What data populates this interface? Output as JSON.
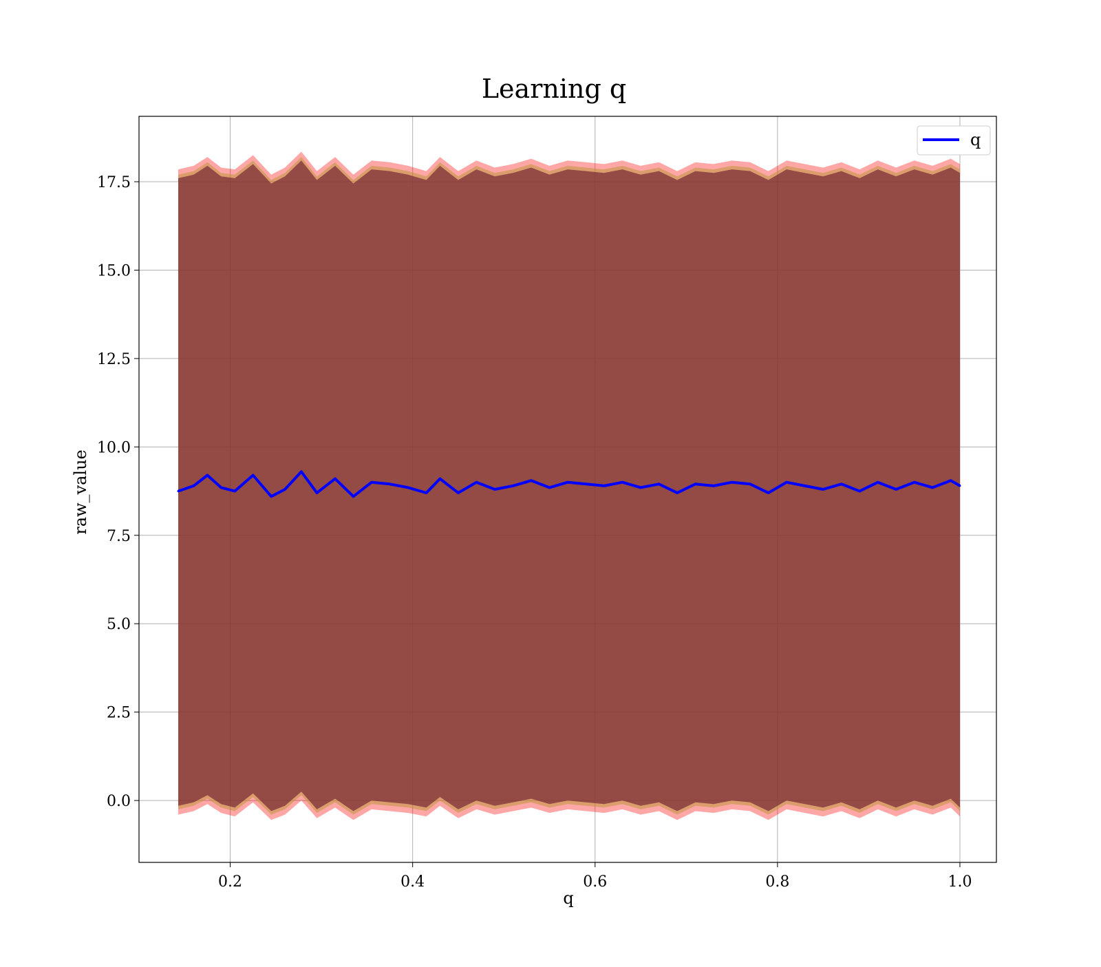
{
  "chart_data": {
    "type": "line",
    "title": "Learning q",
    "xlabel": "q",
    "ylabel": "raw_value",
    "xlim": [
      0.1,
      1.04
    ],
    "ylim": [
      -1.75,
      19.35
    ],
    "x_ticks": [
      0.2,
      0.4,
      0.6,
      0.8,
      1.0
    ],
    "x_tick_labels": [
      "0.2",
      "0.4",
      "0.6",
      "0.8",
      "1.0"
    ],
    "y_ticks": [
      0.0,
      2.5,
      5.0,
      7.5,
      10.0,
      12.5,
      15.0,
      17.5
    ],
    "y_tick_labels": [
      "0.0",
      "2.5",
      "5.0",
      "7.5",
      "10.0",
      "12.5",
      "15.0",
      "17.5"
    ],
    "grid": true,
    "legend_position": "top-right",
    "x_range": [
      0.143,
      1.0
    ],
    "series": [
      {
        "name": "q",
        "color": "#0000ff",
        "x": [
          0.143,
          0.16,
          0.175,
          0.19,
          0.205,
          0.225,
          0.245,
          0.26,
          0.278,
          0.295,
          0.315,
          0.335,
          0.355,
          0.375,
          0.395,
          0.415,
          0.43,
          0.45,
          0.47,
          0.49,
          0.51,
          0.53,
          0.55,
          0.57,
          0.59,
          0.61,
          0.63,
          0.65,
          0.67,
          0.69,
          0.71,
          0.73,
          0.75,
          0.77,
          0.79,
          0.81,
          0.83,
          0.85,
          0.87,
          0.89,
          0.91,
          0.93,
          0.95,
          0.97,
          0.99,
          1.0
        ],
        "y": [
          8.75,
          8.9,
          9.2,
          8.85,
          8.75,
          9.2,
          8.6,
          8.8,
          9.3,
          8.7,
          9.1,
          8.6,
          9.0,
          8.95,
          8.85,
          8.7,
          9.1,
          8.7,
          9.0,
          8.8,
          8.9,
          9.05,
          8.85,
          9.0,
          8.95,
          8.9,
          9.0,
          8.85,
          8.95,
          8.7,
          8.95,
          8.9,
          9.0,
          8.95,
          8.7,
          9.0,
          8.9,
          8.8,
          8.95,
          8.75,
          9.0,
          8.8,
          9.0,
          8.85,
          9.05,
          8.9
        ]
      }
    ],
    "bands": [
      {
        "lower": [
          -0.15,
          -0.05,
          0.15,
          -0.1,
          -0.2,
          0.2,
          -0.3,
          -0.15,
          0.25,
          -0.25,
          0.05,
          -0.3,
          0.0,
          -0.05,
          -0.1,
          -0.2,
          0.1,
          -0.25,
          0.0,
          -0.15,
          -0.05,
          0.05,
          -0.1,
          0.0,
          -0.05,
          -0.1,
          0.0,
          -0.15,
          -0.05,
          -0.3,
          -0.05,
          -0.1,
          0.0,
          -0.05,
          -0.3,
          0.0,
          -0.1,
          -0.2,
          -0.05,
          -0.25,
          0.0,
          -0.2,
          0.0,
          -0.15,
          0.05,
          -0.2
        ],
        "upper": [
          17.6,
          17.7,
          17.95,
          17.65,
          17.6,
          18.0,
          17.45,
          17.65,
          18.1,
          17.55,
          17.95,
          17.45,
          17.85,
          17.8,
          17.7,
          17.55,
          17.95,
          17.55,
          17.85,
          17.65,
          17.75,
          17.9,
          17.7,
          17.85,
          17.8,
          17.75,
          17.85,
          17.7,
          17.8,
          17.55,
          17.8,
          17.75,
          17.85,
          17.8,
          17.55,
          17.85,
          17.75,
          17.65,
          17.8,
          17.6,
          17.85,
          17.65,
          17.85,
          17.7,
          17.9,
          17.75
        ]
      }
    ]
  }
}
